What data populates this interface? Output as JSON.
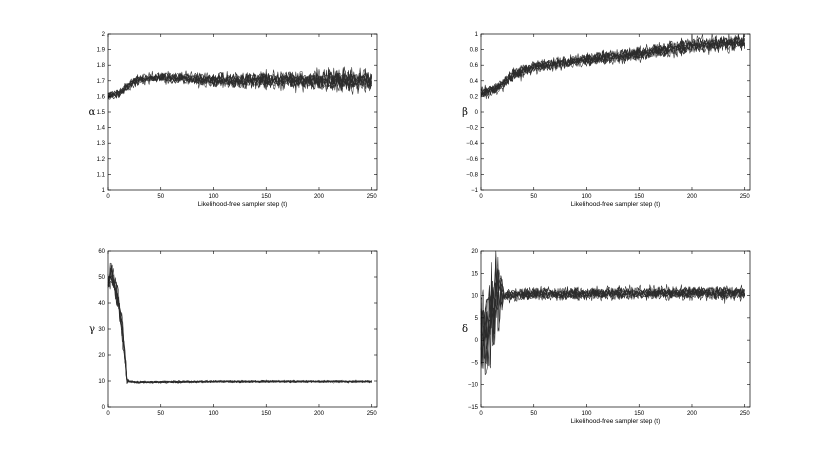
{
  "chart_data": [
    {
      "type": "line",
      "ylabel": "α",
      "xlabel": "Likelihood-free sampler step (t)",
      "xlim": [
        0,
        255
      ],
      "ylim": [
        1,
        2
      ],
      "xticks": [
        0,
        50,
        100,
        150,
        200,
        250
      ],
      "yticks": [
        1,
        1.1,
        1.2,
        1.3,
        1.4,
        1.5,
        1.6,
        1.7,
        1.8,
        1.9,
        2
      ],
      "ytick_labels": [
        "1",
        "1.1",
        "1.2",
        "1.3",
        "1.4",
        "1.5",
        "1.6",
        "1.7",
        "1.8",
        "1.9",
        "2"
      ],
      "n_traces": 10,
      "trend": {
        "t": [
          0,
          10,
          20,
          30,
          60,
          100,
          150,
          200,
          250
        ],
        "v": [
          1.6,
          1.62,
          1.67,
          1.71,
          1.72,
          1.7,
          1.7,
          1.7,
          1.7
        ]
      },
      "noise": {
        "t": [
          0,
          20,
          100,
          250
        ],
        "v": [
          0.02,
          0.02,
          0.03,
          0.05
        ]
      }
    },
    {
      "type": "line",
      "ylabel": "β",
      "xlabel": "Likelihood-free sampler step (t)",
      "xlim": [
        0,
        255
      ],
      "ylim": [
        -1,
        1
      ],
      "xticks": [
        0,
        50,
        100,
        150,
        200,
        250
      ],
      "yticks": [
        -1,
        -0.8,
        -0.6,
        -0.4,
        -0.2,
        0,
        0.2,
        0.4,
        0.6,
        0.8,
        1
      ],
      "ytick_labels": [
        "−1",
        "−0.8",
        "−0.6",
        "−0.4",
        "−0.2",
        "0",
        "0.2",
        "0.4",
        "0.6",
        "0.8",
        "1"
      ],
      "n_traces": 10,
      "trend": {
        "t": [
          0,
          10,
          20,
          30,
          50,
          100,
          150,
          200,
          250
        ],
        "v": [
          0.25,
          0.27,
          0.35,
          0.48,
          0.58,
          0.67,
          0.75,
          0.85,
          0.9
        ]
      },
      "noise": {
        "t": [
          0,
          50,
          150,
          250
        ],
        "v": [
          0.05,
          0.05,
          0.06,
          0.07
        ]
      }
    },
    {
      "type": "line",
      "ylabel": "γ",
      "xlabel": "",
      "xlim": [
        0,
        255
      ],
      "ylim": [
        0,
        60
      ],
      "xticks": [
        0,
        50,
        100,
        150,
        200,
        250
      ],
      "yticks": [
        0,
        10,
        20,
        30,
        40,
        50,
        60
      ],
      "ytick_labels": [
        "0",
        "10",
        "20",
        "30",
        "40",
        "50",
        "60"
      ],
      "n_traces": 10,
      "trend": {
        "t": [
          0,
          3,
          8,
          14,
          18,
          25,
          100,
          250
        ],
        "v": [
          47,
          52,
          44,
          28,
          10,
          9.5,
          9.8,
          9.8
        ]
      },
      "noise": {
        "t": [
          0,
          14,
          20,
          250
        ],
        "v": [
          3.5,
          3.5,
          0.3,
          0.3
        ]
      }
    },
    {
      "type": "line",
      "ylabel": "δ",
      "xlabel": "Likelihood-free sampler step (t)",
      "xlim": [
        0,
        255
      ],
      "ylim": [
        -15,
        20
      ],
      "xticks": [
        0,
        50,
        100,
        150,
        200,
        250
      ],
      "yticks": [
        -15,
        -10,
        -5,
        0,
        5,
        10,
        15,
        20
      ],
      "ytick_labels": [
        "−15",
        "−10",
        "−5",
        "0",
        "5",
        "10",
        "15",
        "20"
      ],
      "n_traces": 10,
      "trend": {
        "t": [
          0,
          5,
          10,
          15,
          20,
          50,
          150,
          250
        ],
        "v": [
          2,
          0,
          6,
          10,
          10,
          10.3,
          10.5,
          10.6
        ]
      },
      "noise": {
        "t": [
          0,
          15,
          22,
          250
        ],
        "v": [
          8,
          7,
          0.9,
          1.0
        ]
      }
    }
  ]
}
